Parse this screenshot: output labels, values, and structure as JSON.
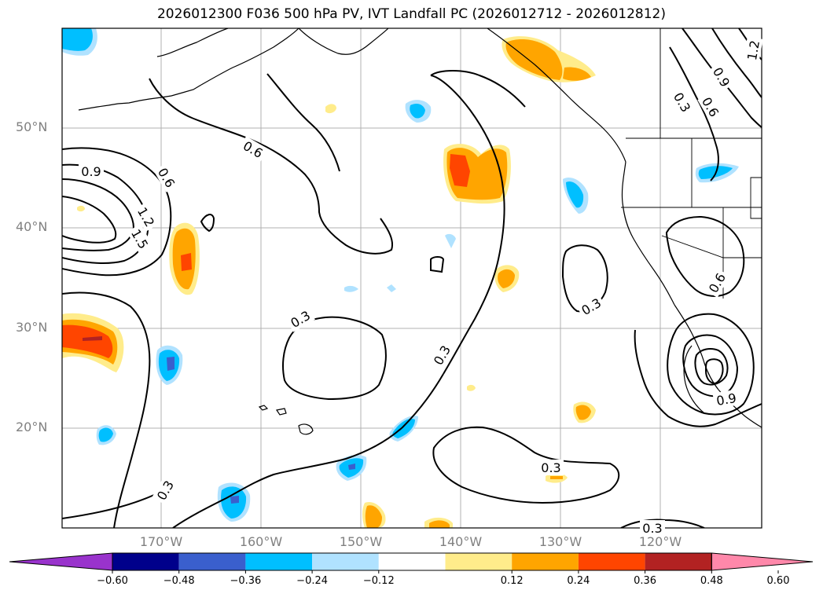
{
  "title": "2026012300 F036 500 hPa PV, IVT Landfall PC (2026012712 - 2026012812)",
  "latitudes": [
    {
      "label": "50°N"
    },
    {
      "label": "40°N"
    },
    {
      "label": "30°N"
    },
    {
      "label": "20°N"
    }
  ],
  "longitudes": [
    {
      "label": "170°W"
    },
    {
      "label": "160°W"
    },
    {
      "label": "150°W"
    },
    {
      "label": "140°W"
    },
    {
      "label": "130°W"
    },
    {
      "label": "120°W"
    }
  ],
  "contour_labels": [
    "0.9",
    "0.6",
    "1.2",
    "1.5",
    "0.6",
    "0.3",
    "0.3",
    "0.3",
    "0.3",
    "0.3",
    "0.3",
    "0.6",
    "0.9",
    "0.3",
    "0.6",
    "0.9",
    "1.2"
  ],
  "colorbar": {
    "ticks": [
      "−0.60",
      "−0.48",
      "−0.36",
      "−0.24",
      "−0.12",
      "0.12",
      "0.24",
      "0.36",
      "0.48",
      "0.60"
    ],
    "colors": [
      "#9933cc",
      "#00008b",
      "#3a5fcd",
      "#00bfff",
      "#b0e2ff",
      "#ffffff",
      "#ffec8b",
      "#ffa500",
      "#ff4500",
      "#b22222",
      "#ff88aa"
    ]
  }
}
